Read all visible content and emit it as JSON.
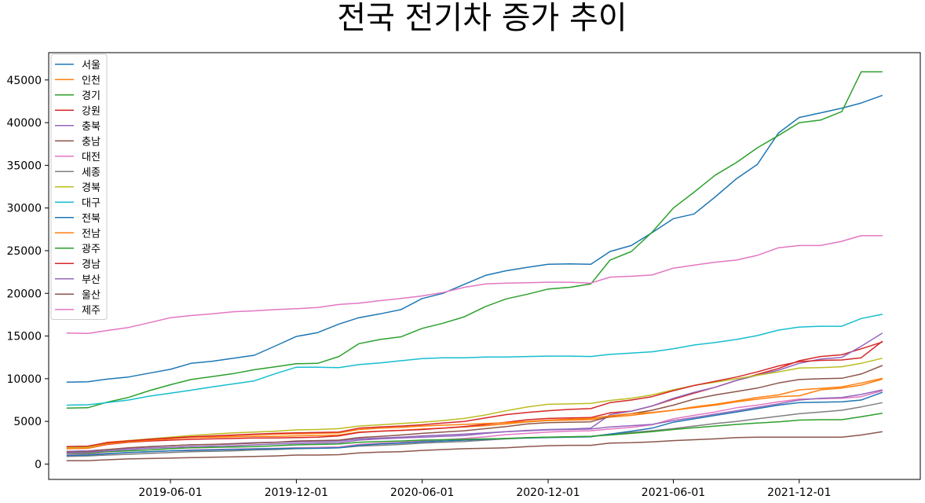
{
  "chart_data": {
    "type": "line",
    "title": "전국 전기차 증가 추이",
    "xlabel": "",
    "ylabel": "",
    "x": [
      "2019-01-01",
      "2019-02-01",
      "2019-03-01",
      "2019-04-01",
      "2019-05-01",
      "2019-06-01",
      "2019-07-01",
      "2019-08-01",
      "2019-09-01",
      "2019-10-01",
      "2019-11-01",
      "2019-12-01",
      "2020-01-01",
      "2020-02-01",
      "2020-03-01",
      "2020-04-01",
      "2020-05-01",
      "2020-06-01",
      "2020-07-01",
      "2020-08-01",
      "2020-09-01",
      "2020-10-01",
      "2020-11-01",
      "2020-12-01",
      "2021-01-01",
      "2021-02-01",
      "2021-03-01",
      "2021-04-01",
      "2021-05-01",
      "2021-06-01",
      "2021-07-01",
      "2021-08-01",
      "2021-09-01",
      "2021-10-01",
      "2021-11-01",
      "2021-12-01",
      "2022-01-01",
      "2022-02-01",
      "2022-03-01",
      "2022-04-01"
    ],
    "x_range": [
      "2018-12-06",
      "2022-05-26"
    ],
    "x_tick_labels": [
      "2019-06-01",
      "2019-12-01",
      "2020-06-01",
      "2020-12-01",
      "2021-06-01",
      "2021-12-01"
    ],
    "ylim": [
      -1800,
      48200
    ],
    "y_ticks": [
      0,
      5000,
      10000,
      15000,
      20000,
      25000,
      30000,
      35000,
      40000,
      45000
    ],
    "grid": false,
    "legend_position": "upper-left",
    "series": [
      {
        "name": "서울",
        "color": "#1f77b4",
        "values": [
          9600,
          9650,
          9950,
          10200,
          10650,
          11100,
          11800,
          12050,
          12400,
          12750,
          13850,
          14950,
          15400,
          16400,
          17150,
          17600,
          18100,
          19400,
          20000,
          21050,
          22100,
          22650,
          23050,
          23400,
          23450,
          23400,
          24900,
          25600,
          27100,
          28750,
          29300,
          31300,
          33450,
          35100,
          38800,
          40600,
          41150,
          41700,
          42300,
          43200
        ]
      },
      {
        "name": "인천",
        "color": "#ff7f0e",
        "values": [
          2000,
          2050,
          2550,
          2750,
          2900,
          3000,
          3100,
          3150,
          3200,
          3250,
          3250,
          3300,
          3350,
          3400,
          3750,
          3850,
          3950,
          4100,
          4200,
          4350,
          4500,
          4700,
          4950,
          5100,
          5150,
          5200,
          5500,
          5700,
          6000,
          6300,
          6600,
          6900,
          7300,
          7600,
          7900,
          8000,
          8700,
          8900,
          9250,
          9950
        ]
      },
      {
        "name": "경기",
        "color": "#2ca02c",
        "values": [
          6550,
          6600,
          7250,
          7800,
          8600,
          9300,
          9900,
          10250,
          10600,
          11050,
          11400,
          11750,
          11800,
          12600,
          14100,
          14600,
          14900,
          15900,
          16500,
          17250,
          18450,
          19350,
          19900,
          20500,
          20700,
          21100,
          23900,
          24900,
          27150,
          30000,
          31850,
          33850,
          35350,
          37050,
          38500,
          40000,
          40300,
          41300,
          45950,
          45950
        ]
      },
      {
        "name": "강원",
        "color": "#d62728",
        "values": [
          1800,
          1850,
          2300,
          2550,
          2700,
          2800,
          2900,
          2950,
          3000,
          3050,
          3050,
          3100,
          3150,
          3300,
          3700,
          3850,
          3950,
          4050,
          4200,
          4400,
          4650,
          4900,
          5200,
          5350,
          5400,
          5450,
          6000,
          6200,
          6800,
          7600,
          8300,
          9000,
          9800,
          10500,
          11200,
          12100,
          12600,
          12800,
          13500,
          14300
        ]
      },
      {
        "name": "충북",
        "color": "#9467bd",
        "values": [
          1500,
          1550,
          1700,
          1850,
          2000,
          2150,
          2250,
          2300,
          2400,
          2500,
          2550,
          2600,
          2650,
          2700,
          2950,
          3050,
          3150,
          3300,
          3400,
          3500,
          3650,
          3800,
          3950,
          4050,
          4100,
          4200,
          5800,
          6200,
          6800,
          7700,
          8400,
          9000,
          9800,
          10400,
          11000,
          11800,
          12300,
          12500,
          13800,
          15350
        ]
      },
      {
        "name": "충남",
        "color": "#8c564b",
        "values": [
          1400,
          1450,
          1700,
          1900,
          2050,
          2150,
          2250,
          2300,
          2350,
          2450,
          2550,
          2700,
          2750,
          2800,
          3100,
          3250,
          3400,
          3600,
          3750,
          3900,
          4150,
          4400,
          4700,
          4850,
          4900,
          4950,
          5600,
          5900,
          6300,
          6900,
          7600,
          8100,
          8500,
          8900,
          9500,
          9900,
          10000,
          10050,
          10550,
          11550
        ]
      },
      {
        "name": "대전",
        "color": "#e377c2",
        "values": [
          1100,
          1150,
          1250,
          1350,
          1450,
          1550,
          1650,
          1700,
          1750,
          1800,
          1850,
          1900,
          1950,
          2000,
          2300,
          2450,
          2550,
          2700,
          2850,
          3000,
          3200,
          3450,
          3600,
          3750,
          3850,
          3900,
          4100,
          4300,
          4600,
          5300,
          5700,
          6100,
          6600,
          6900,
          7300,
          7600,
          7650,
          7700,
          7900,
          8600
        ]
      },
      {
        "name": "세종",
        "color": "#7f7f7f",
        "values": [
          900,
          950,
          1050,
          1150,
          1250,
          1350,
          1450,
          1500,
          1550,
          1650,
          1700,
          1800,
          1850,
          1900,
          2100,
          2200,
          2300,
          2450,
          2550,
          2650,
          2800,
          2950,
          3050,
          3150,
          3200,
          3250,
          3500,
          3700,
          3900,
          4150,
          4450,
          4750,
          5000,
          5300,
          5600,
          5900,
          6100,
          6300,
          6700,
          7200
        ]
      },
      {
        "name": "경북",
        "color": "#bcbd22",
        "values": [
          1900,
          1950,
          2450,
          2750,
          2950,
          3150,
          3350,
          3500,
          3650,
          3750,
          3850,
          4000,
          4050,
          4150,
          4450,
          4600,
          4750,
          4900,
          5100,
          5350,
          5750,
          6250,
          6700,
          7000,
          7050,
          7100,
          7450,
          7700,
          8100,
          8700,
          9200,
          9600,
          10000,
          10400,
          10800,
          11250,
          11300,
          11400,
          11800,
          12400
        ]
      },
      {
        "name": "대구",
        "color": "#17becf",
        "values": [
          6900,
          6950,
          7200,
          7500,
          7950,
          8300,
          8650,
          9050,
          9400,
          9750,
          10600,
          11350,
          11350,
          11300,
          11650,
          11850,
          12100,
          12350,
          12450,
          12450,
          12550,
          12550,
          12600,
          12650,
          12650,
          12600,
          12850,
          13000,
          13150,
          13500,
          13950,
          14250,
          14600,
          15050,
          15700,
          16050,
          16150,
          16150,
          17050,
          17550
        ]
      },
      {
        "name": "전북",
        "color": "#1f77b4",
        "values": [
          1000,
          1050,
          1200,
          1350,
          1450,
          1550,
          1600,
          1650,
          1700,
          1750,
          1800,
          1850,
          1850,
          1900,
          2200,
          2350,
          2450,
          2600,
          2700,
          2800,
          2900,
          3000,
          3050,
          3100,
          3150,
          3200,
          3500,
          3850,
          4200,
          4900,
          5300,
          5700,
          6100,
          6500,
          6900,
          7200,
          7250,
          7300,
          7500,
          8400
        ]
      },
      {
        "name": "전남",
        "color": "#ff7f0e",
        "values": [
          1800,
          1850,
          2350,
          2600,
          2800,
          2950,
          3150,
          3250,
          3350,
          3450,
          3500,
          3550,
          3600,
          3650,
          4050,
          4200,
          4300,
          4450,
          4550,
          4650,
          4750,
          4850,
          5000,
          5150,
          5250,
          5350,
          5650,
          5900,
          6050,
          6300,
          6700,
          7000,
          7400,
          7800,
          8100,
          8700,
          8850,
          9050,
          9500,
          10050
        ]
      },
      {
        "name": "광주",
        "color": "#2ca02c",
        "values": [
          1250,
          1250,
          1450,
          1550,
          1650,
          1800,
          1900,
          1950,
          2000,
          2050,
          2150,
          2250,
          2300,
          2350,
          2550,
          2650,
          2700,
          2800,
          2850,
          2900,
          2950,
          3000,
          3100,
          3150,
          3200,
          3250,
          3400,
          3600,
          3800,
          4050,
          4250,
          4450,
          4650,
          4800,
          4950,
          5150,
          5200,
          5200,
          5550,
          5950
        ]
      },
      {
        "name": "경남",
        "color": "#d62728",
        "values": [
          2050,
          2100,
          2500,
          2700,
          2900,
          3050,
          3200,
          3300,
          3400,
          3500,
          3600,
          3650,
          3700,
          3750,
          4200,
          4350,
          4450,
          4600,
          4800,
          5000,
          5400,
          5800,
          6050,
          6250,
          6400,
          6500,
          7200,
          7500,
          7900,
          8600,
          9200,
          9700,
          10200,
          10800,
          11500,
          12000,
          12150,
          12200,
          12450,
          14400
        ]
      },
      {
        "name": "부산",
        "color": "#9467bd",
        "values": [
          1300,
          1350,
          1550,
          1700,
          1850,
          1950,
          2050,
          2100,
          2150,
          2250,
          2350,
          2400,
          2450,
          2500,
          2800,
          2950,
          3050,
          3150,
          3250,
          3350,
          3600,
          3800,
          3900,
          4000,
          4050,
          4100,
          4350,
          4500,
          4650,
          5100,
          5450,
          5850,
          6250,
          6650,
          7050,
          7500,
          7700,
          7800,
          8150,
          8700
        ]
      },
      {
        "name": "울산",
        "color": "#8c564b",
        "values": [
          400,
          400,
          500,
          600,
          650,
          700,
          750,
          800,
          850,
          900,
          950,
          1050,
          1050,
          1100,
          1300,
          1400,
          1450,
          1600,
          1700,
          1800,
          1850,
          1900,
          2050,
          2150,
          2200,
          2200,
          2450,
          2500,
          2600,
          2750,
          2850,
          2950,
          3100,
          3150,
          3150,
          3150,
          3150,
          3150,
          3400,
          3800
        ]
      },
      {
        "name": "제주",
        "color": "#e377c2",
        "values": [
          15350,
          15300,
          15650,
          16000,
          16550,
          17150,
          17400,
          17600,
          17850,
          17950,
          18100,
          18200,
          18350,
          18700,
          18850,
          19150,
          19400,
          19700,
          20100,
          20700,
          21100,
          21200,
          21250,
          21300,
          21300,
          21200,
          21900,
          22000,
          22150,
          22950,
          23300,
          23650,
          23900,
          24450,
          25350,
          25600,
          25600,
          26100,
          26750,
          26750
        ]
      }
    ]
  }
}
